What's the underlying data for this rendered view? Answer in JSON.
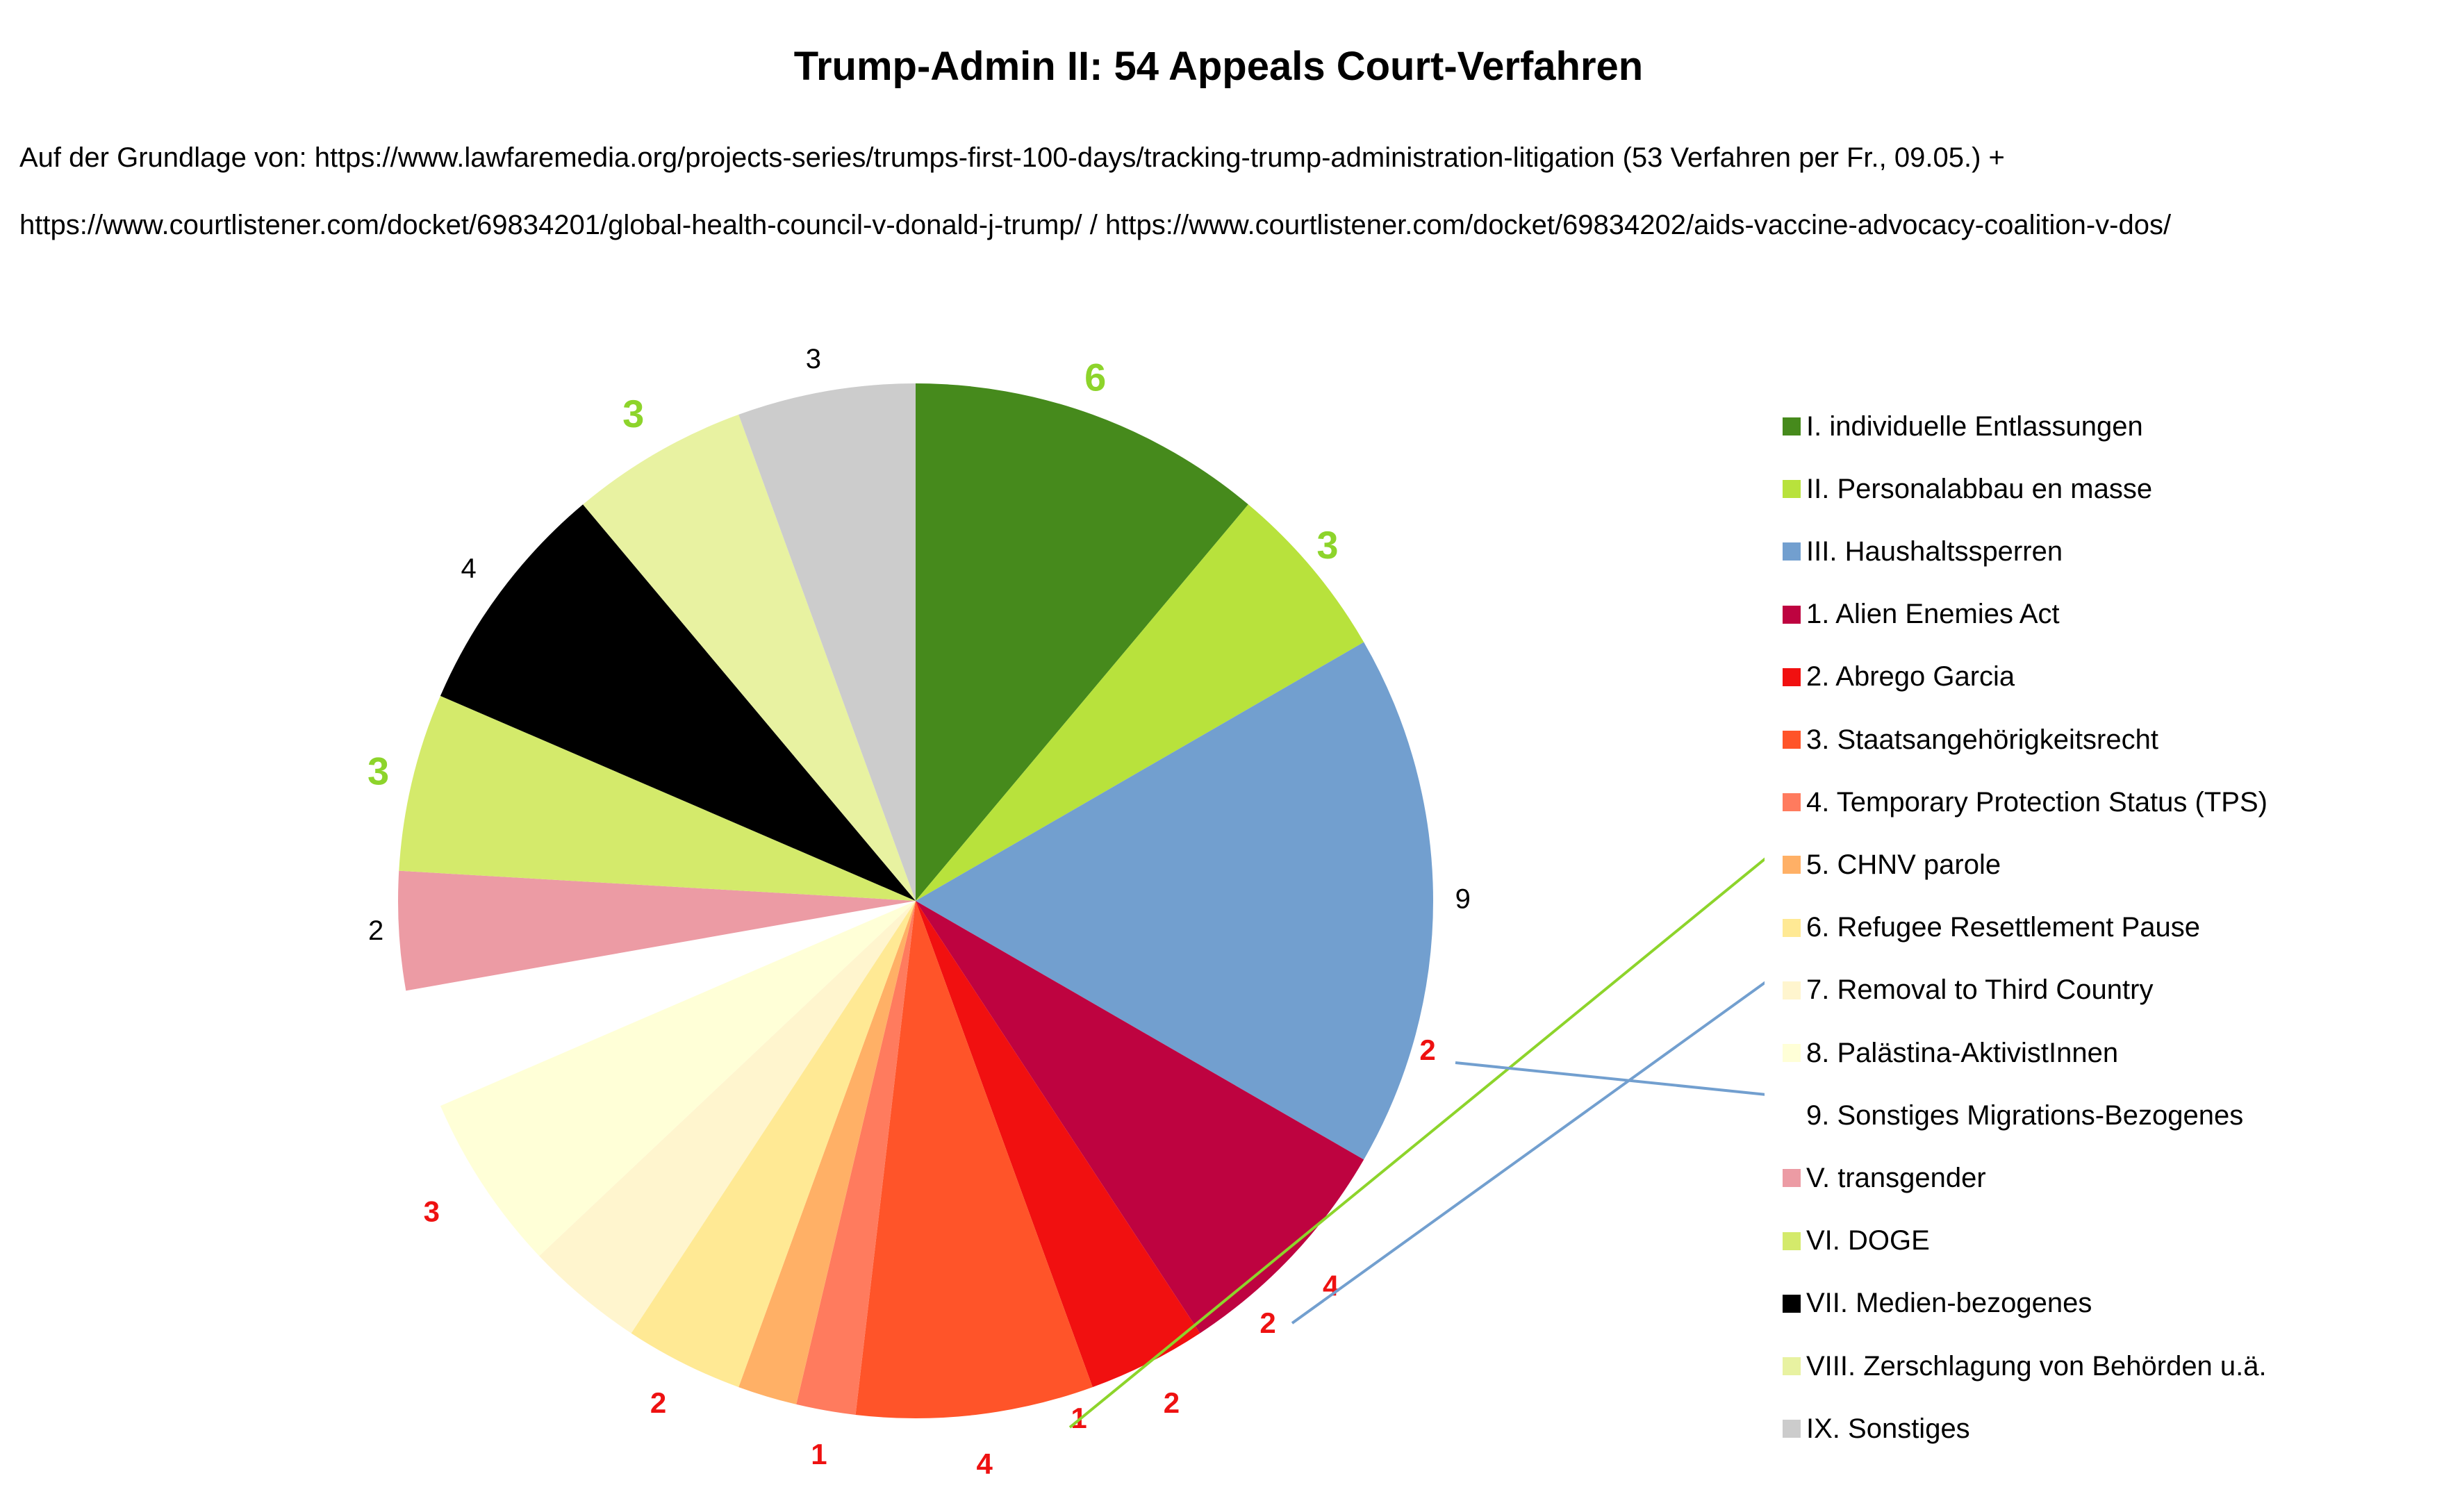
{
  "title": "Trump-Admin II: 54 Appeals Court-Verfahren",
  "subtitle_lines": [
    "Auf der Grundlage von: https://www.lawfaremedia.org/projects-series/trumps-first-100-days/tracking-trump-administration-litigation (53 Verfahren per Fr., 09.05.) +",
    "https://www.courtlistener.com/docket/69834201/global-health-council-v-donald-j-trump/ / https://www.courtlistener.com/docket/69834202/aids-vaccine-advocacy-coalition-v-dos/"
  ],
  "chart_data": {
    "type": "pie",
    "title": "Trump-Admin II: 54 Appeals Court-Verfahren",
    "total": 54,
    "legend_position": "right",
    "slices": [
      {
        "name": "I. individuelle Entlassungen",
        "value": 6,
        "color": "#468a1c",
        "label_color": "#8dd42b"
      },
      {
        "name": "II. Personalabbau en masse",
        "value": 3,
        "color": "#b8e23c",
        "label_color": "#8dd42b"
      },
      {
        "name": "III. Haushaltssperren",
        "value": 9,
        "color": "#729fcf",
        "label_color": "#000000"
      },
      {
        "name": "1. Alien Enemies Act",
        "value": 4,
        "color": "#be0340",
        "label_color": "#ee1111"
      },
      {
        "name": "2. Abrego Garcia",
        "value": 2,
        "color": "#f11010",
        "label_color": "#ee1111"
      },
      {
        "name": "3. Staatsangehörigkeitsrecht",
        "value": 4,
        "color": "#ff5429",
        "label_color": "#ee1111"
      },
      {
        "name": "4. Temporary Protection Status (TPS)",
        "value": 1,
        "color": "#ff7b5e",
        "label_color": "#ee1111"
      },
      {
        "name": "5. CHNV parole",
        "value": 1,
        "color": "#ffb066",
        "label_color": "#ee1111"
      },
      {
        "name": "6. Refugee Resettlement Pause",
        "value": 2,
        "color": "#ffe994",
        "label_color": "#ee1111"
      },
      {
        "name": "7. Removal to Third Country",
        "value": 2,
        "color": "#fff5ce",
        "label_color": "#ee1111"
      },
      {
        "name": "8. Palästina-AktivistInnen",
        "value": 3,
        "color": "#ffffd7",
        "label_color": "#ee1111"
      },
      {
        "name": "9. Sonstiges Migrations-Bezogenes",
        "value": 2,
        "color": "#ffffff",
        "label_color": "#ee1111"
      },
      {
        "name": "V. transgender",
        "value": 2,
        "color": "#ec9ba4",
        "label_color": "#000000"
      },
      {
        "name": "VI. DOGE",
        "value": 3,
        "color": "#d4ea6b",
        "label_color": "#8dd42b"
      },
      {
        "name": "VII. Medien-bezogenes",
        "value": 4,
        "color": "#000000",
        "label_color": "#000000"
      },
      {
        "name": "VIII. Zerschlagung von Behörden u.ä.",
        "value": 3,
        "color": "#e8f2a1",
        "label_color": "#8dd42b"
      },
      {
        "name": "IX. Sonstiges",
        "value": 3,
        "color": "#cccccc",
        "label_color": "#000000"
      }
    ]
  }
}
